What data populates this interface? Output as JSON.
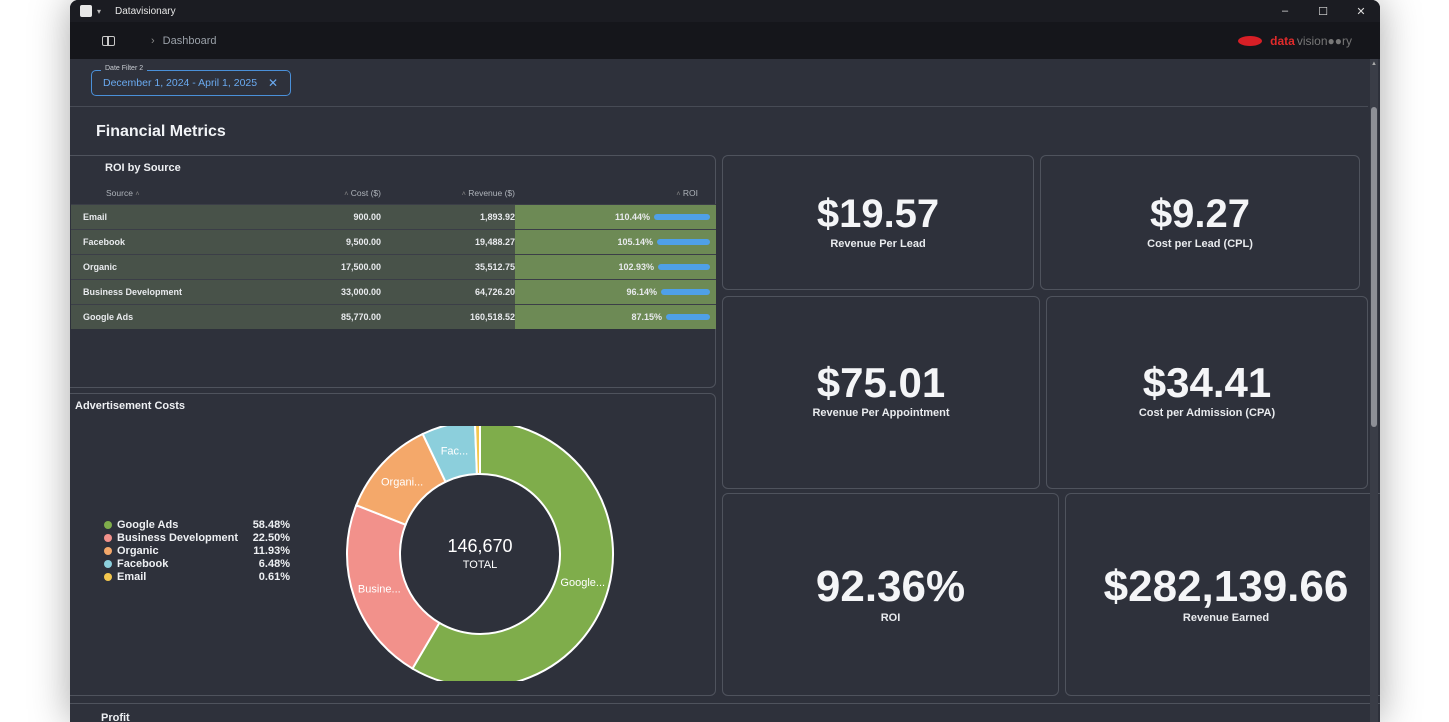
{
  "window": {
    "title": "Datavisionary",
    "controls": [
      "–",
      "☐",
      "✕"
    ]
  },
  "nav": {
    "breadcrumb": "Dashboard",
    "brand_red": "data",
    "brand_gray": "vision●●ry"
  },
  "filter": {
    "label": "Date Filter 2",
    "value": "December 1, 2024 - April 1, 2025",
    "clear": "✕"
  },
  "section": {
    "title": "Financial Metrics"
  },
  "roi_table": {
    "title": "ROI by Source",
    "headers": {
      "source": "Source",
      "cost": "Cost ($)",
      "revenue": "Revenue ($)",
      "roi": "ROI"
    },
    "rows": [
      {
        "source": "Email",
        "cost": "900.00",
        "revenue": "1,893.92",
        "roi": "110.44%",
        "roi_value": 110.44
      },
      {
        "source": "Facebook",
        "cost": "9,500.00",
        "revenue": "19,488.27",
        "roi": "105.14%",
        "roi_value": 105.14
      },
      {
        "source": "Organic",
        "cost": "17,500.00",
        "revenue": "35,512.75",
        "roi": "102.93%",
        "roi_value": 102.93
      },
      {
        "source": "Business Development",
        "cost": "33,000.00",
        "revenue": "64,726.20",
        "roi": "96.14%",
        "roi_value": 96.14
      },
      {
        "source": "Google Ads",
        "cost": "85,770.00",
        "revenue": "160,518.52",
        "roi": "87.15%",
        "roi_value": 87.15
      }
    ]
  },
  "ad_costs": {
    "title": "Advertisement Costs"
  },
  "chart_data": {
    "type": "pie",
    "title": "Advertisement Costs",
    "center_value": "146,670",
    "center_label": "TOTAL",
    "slices": [
      {
        "name": "Google Ads",
        "label": "Google...",
        "pct_text": "58.48%",
        "value": 85770,
        "color": "#7fad4b"
      },
      {
        "name": "Business Development",
        "label": "Busine...",
        "pct_text": "22.50%",
        "value": 33000,
        "color": "#f2918b"
      },
      {
        "name": "Organic",
        "label": "Organi...",
        "pct_text": "11.93%",
        "value": 17500,
        "color": "#f4a86a"
      },
      {
        "name": "Facebook",
        "label": "Fac...",
        "pct_text": "6.48%",
        "value": 9500,
        "color": "#8ccfdc"
      },
      {
        "name": "Email",
        "label": "",
        "pct_text": "0.61%",
        "value": 900,
        "color": "#f3c74e"
      }
    ]
  },
  "kpis": {
    "revenue_per_lead": {
      "value": "$19.57",
      "label": "Revenue Per Lead"
    },
    "cost_per_lead": {
      "value": "$9.27",
      "label": "Cost per Lead (CPL)"
    },
    "revenue_per_appointment": {
      "value": "$75.01",
      "label": "Revenue Per Appointment"
    },
    "cost_per_admission": {
      "value": "$34.41",
      "label": "Cost per Admission (CPA)"
    },
    "roi": {
      "value": "92.36%",
      "label": "ROI"
    },
    "revenue_earned": {
      "value": "$282,139.66",
      "label": "Revenue Earned"
    }
  },
  "profit": {
    "title": "Profit"
  },
  "colors": {
    "accent": "#4a90d9",
    "bar": "#4fa0e8",
    "roi_cell": "#6d8a55"
  }
}
